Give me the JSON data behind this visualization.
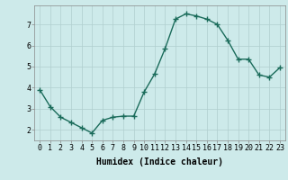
{
  "x": [
    0,
    1,
    2,
    3,
    4,
    5,
    6,
    7,
    8,
    9,
    10,
    11,
    12,
    13,
    14,
    15,
    16,
    17,
    18,
    19,
    20,
    21,
    22,
    23
  ],
  "y": [
    3.9,
    3.1,
    2.6,
    2.35,
    2.1,
    1.85,
    2.45,
    2.6,
    2.65,
    2.65,
    3.8,
    4.65,
    5.85,
    7.25,
    7.5,
    7.4,
    7.25,
    7.0,
    6.25,
    5.35,
    5.35,
    4.6,
    4.5,
    4.95
  ],
  "line_color": "#1a6b5a",
  "marker": "+",
  "marker_size": 4,
  "bg_color": "#cdeaea",
  "grid_color": "#b0cece",
  "xlabel": "Humidex (Indice chaleur)",
  "xlabel_fontsize": 7,
  "tick_fontsize": 6,
  "ylim": [
    1.5,
    7.9
  ],
  "xlim": [
    -0.5,
    23.5
  ],
  "yticks": [
    2,
    3,
    4,
    5,
    6,
    7
  ],
  "xticks": [
    0,
    1,
    2,
    3,
    4,
    5,
    6,
    7,
    8,
    9,
    10,
    11,
    12,
    13,
    14,
    15,
    16,
    17,
    18,
    19,
    20,
    21,
    22,
    23
  ]
}
